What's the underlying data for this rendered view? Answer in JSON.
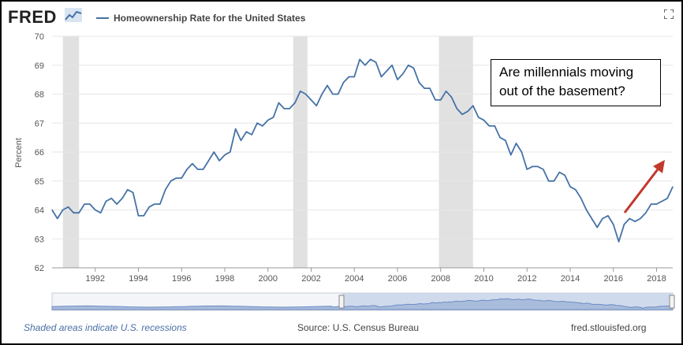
{
  "header": {
    "logo_text": "FRED",
    "series_title": "Homeownership Rate for the United States"
  },
  "annotation": {
    "line1": "Are millennials moving",
    "line2": "out of the basement?"
  },
  "footer": {
    "recession_note": "Shaded areas indicate U.S. recessions",
    "source": "Source: U.S. Census Bureau",
    "site": "fred.stlouisfed.org"
  },
  "colors": {
    "line": "#4572a7",
    "recession": "#e1e1e1",
    "arrow": "#c0392b"
  },
  "chart_data": {
    "type": "line",
    "title": "Homeownership Rate for the United States",
    "ylabel": "Percent",
    "xlabel": "",
    "ylim": [
      62,
      70
    ],
    "xlim": [
      1990.0,
      2018.75
    ],
    "yticks": [
      62,
      63,
      64,
      65,
      66,
      67,
      68,
      69,
      70
    ],
    "xticks": [
      "1992",
      "1994",
      "1996",
      "1998",
      "2000",
      "2002",
      "2004",
      "2006",
      "2008",
      "2010",
      "2012",
      "2014",
      "2016",
      "2018"
    ],
    "grid": true,
    "recessions": [
      [
        1990.5,
        1991.25
      ],
      [
        2001.17,
        2001.83
      ],
      [
        2007.92,
        2009.5
      ]
    ],
    "series": [
      {
        "points": [
          [
            1990.0,
            64.0
          ],
          [
            1990.25,
            63.7
          ],
          [
            1990.5,
            64.0
          ],
          [
            1990.75,
            64.1
          ],
          [
            1991.0,
            63.9
          ],
          [
            1991.25,
            63.9
          ],
          [
            1991.5,
            64.2
          ],
          [
            1991.75,
            64.2
          ],
          [
            1992.0,
            64.0
          ],
          [
            1992.25,
            63.9
          ],
          [
            1992.5,
            64.3
          ],
          [
            1992.75,
            64.4
          ],
          [
            1993.0,
            64.2
          ],
          [
            1993.25,
            64.4
          ],
          [
            1993.5,
            64.7
          ],
          [
            1993.75,
            64.6
          ],
          [
            1994.0,
            63.8
          ],
          [
            1994.25,
            63.8
          ],
          [
            1994.5,
            64.1
          ],
          [
            1994.75,
            64.2
          ],
          [
            1995.0,
            64.2
          ],
          [
            1995.25,
            64.7
          ],
          [
            1995.5,
            65.0
          ],
          [
            1995.75,
            65.1
          ],
          [
            1996.0,
            65.1
          ],
          [
            1996.25,
            65.4
          ],
          [
            1996.5,
            65.6
          ],
          [
            1996.75,
            65.4
          ],
          [
            1997.0,
            65.4
          ],
          [
            1997.25,
            65.7
          ],
          [
            1997.5,
            66.0
          ],
          [
            1997.75,
            65.7
          ],
          [
            1998.0,
            65.9
          ],
          [
            1998.25,
            66.0
          ],
          [
            1998.5,
            66.8
          ],
          [
            1998.75,
            66.4
          ],
          [
            1999.0,
            66.7
          ],
          [
            1999.25,
            66.6
          ],
          [
            1999.5,
            67.0
          ],
          [
            1999.75,
            66.9
          ],
          [
            2000.0,
            67.1
          ],
          [
            2000.25,
            67.2
          ],
          [
            2000.5,
            67.7
          ],
          [
            2000.75,
            67.5
          ],
          [
            2001.0,
            67.5
          ],
          [
            2001.25,
            67.7
          ],
          [
            2001.5,
            68.1
          ],
          [
            2001.75,
            68.0
          ],
          [
            2002.0,
            67.8
          ],
          [
            2002.25,
            67.6
          ],
          [
            2002.5,
            68.0
          ],
          [
            2002.75,
            68.3
          ],
          [
            2003.0,
            68.0
          ],
          [
            2003.25,
            68.0
          ],
          [
            2003.5,
            68.4
          ],
          [
            2003.75,
            68.6
          ],
          [
            2004.0,
            68.6
          ],
          [
            2004.25,
            69.2
          ],
          [
            2004.5,
            69.0
          ],
          [
            2004.75,
            69.2
          ],
          [
            2005.0,
            69.1
          ],
          [
            2005.25,
            68.6
          ],
          [
            2005.5,
            68.8
          ],
          [
            2005.75,
            69.0
          ],
          [
            2006.0,
            68.5
          ],
          [
            2006.25,
            68.7
          ],
          [
            2006.5,
            69.0
          ],
          [
            2006.75,
            68.9
          ],
          [
            2007.0,
            68.4
          ],
          [
            2007.25,
            68.2
          ],
          [
            2007.5,
            68.2
          ],
          [
            2007.75,
            67.8
          ],
          [
            2008.0,
            67.8
          ],
          [
            2008.25,
            68.1
          ],
          [
            2008.5,
            67.9
          ],
          [
            2008.75,
            67.5
          ],
          [
            2009.0,
            67.3
          ],
          [
            2009.25,
            67.4
          ],
          [
            2009.5,
            67.6
          ],
          [
            2009.75,
            67.2
          ],
          [
            2010.0,
            67.1
          ],
          [
            2010.25,
            66.9
          ],
          [
            2010.5,
            66.9
          ],
          [
            2010.75,
            66.5
          ],
          [
            2011.0,
            66.4
          ],
          [
            2011.25,
            65.9
          ],
          [
            2011.5,
            66.3
          ],
          [
            2011.75,
            66.0
          ],
          [
            2012.0,
            65.4
          ],
          [
            2012.25,
            65.5
          ],
          [
            2012.5,
            65.5
          ],
          [
            2012.75,
            65.4
          ],
          [
            2013.0,
            65.0
          ],
          [
            2013.25,
            65.0
          ],
          [
            2013.5,
            65.3
          ],
          [
            2013.75,
            65.2
          ],
          [
            2014.0,
            64.8
          ],
          [
            2014.25,
            64.7
          ],
          [
            2014.5,
            64.4
          ],
          [
            2014.75,
            64.0
          ],
          [
            2015.0,
            63.7
          ],
          [
            2015.25,
            63.4
          ],
          [
            2015.5,
            63.7
          ],
          [
            2015.75,
            63.8
          ],
          [
            2016.0,
            63.5
          ],
          [
            2016.25,
            62.9
          ],
          [
            2016.5,
            63.5
          ],
          [
            2016.75,
            63.7
          ],
          [
            2017.0,
            63.6
          ],
          [
            2017.25,
            63.7
          ],
          [
            2017.5,
            63.9
          ],
          [
            2017.75,
            64.2
          ],
          [
            2018.0,
            64.2
          ],
          [
            2018.25,
            64.3
          ],
          [
            2018.5,
            64.4
          ],
          [
            2018.75,
            64.8
          ]
        ]
      }
    ]
  }
}
